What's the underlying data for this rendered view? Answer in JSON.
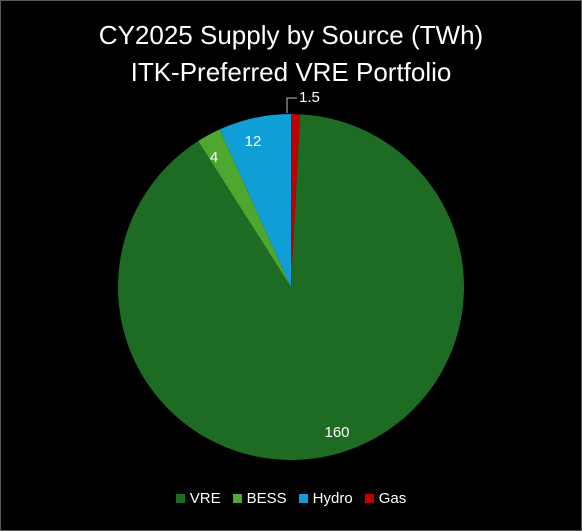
{
  "chart_data": {
    "type": "pie",
    "title": "CY2025 Supply by Source (TWh)",
    "subtitle": "ITK-Preferred VRE Portfolio",
    "slices": [
      {
        "name": "VRE",
        "value": 160,
        "label": "160",
        "color": "#1e6b23"
      },
      {
        "name": "BESS",
        "value": 4,
        "label": "4",
        "color": "#4ea72e"
      },
      {
        "name": "Hydro",
        "value": 12,
        "label": "12",
        "color": "#0f9ed5"
      },
      {
        "name": "Gas",
        "value": 1.5,
        "label": "1.5",
        "color": "#c00000"
      }
    ],
    "legend_position": "bottom",
    "start_angle": "12 o'clock, clockwise from Gas"
  }
}
